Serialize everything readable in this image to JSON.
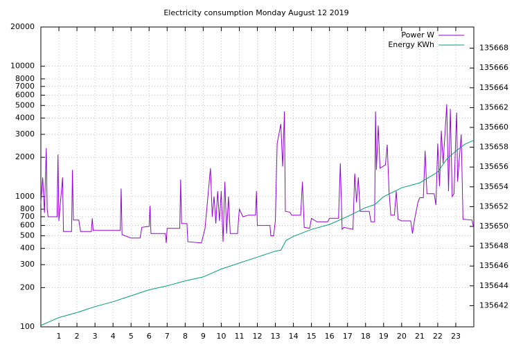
{
  "chart_data": {
    "type": "line",
    "title": "Electricity consumption Monday August 12 2019",
    "xlim": [
      0,
      24
    ],
    "xticks": [
      1,
      2,
      3,
      4,
      5,
      6,
      7,
      8,
      9,
      10,
      11,
      12,
      13,
      14,
      15,
      16,
      17,
      18,
      19,
      20,
      21,
      22,
      23
    ],
    "ylim": [
      100,
      20000
    ],
    "log_y": true,
    "yticks": [
      100,
      200,
      300,
      400,
      500,
      600,
      700,
      800,
      1000,
      2000,
      3000,
      4000,
      5000,
      6000,
      7000,
      8000,
      10000,
      20000
    ],
    "y2lim": [
      135639.86,
      135670.14
    ],
    "y2ticks": [
      135642,
      135644,
      135646,
      135648,
      135650,
      135652,
      135654,
      135656,
      135658,
      135660,
      135662,
      135664,
      135666,
      135668
    ],
    "grid": true,
    "legend": "top-right",
    "series": [
      {
        "name": "Power W",
        "color": "#9400d3",
        "x": [
          0,
          0.1,
          0.2,
          0.3,
          0.35,
          0.4,
          0.9,
          0.95,
          1.0,
          1.2,
          1.25,
          1.7,
          1.75,
          1.8,
          2.1,
          2.2,
          2.8,
          2.85,
          2.9,
          4.4,
          4.45,
          4.5,
          5.0,
          5.5,
          5.6,
          6.0,
          6.05,
          6.1,
          6.9,
          6.95,
          7.0,
          7.7,
          7.75,
          7.8,
          8.1,
          8.15,
          8.9,
          9.1,
          9.4,
          9.5,
          9.6,
          9.7,
          9.8,
          9.9,
          10.0,
          10.1,
          10.2,
          10.3,
          10.4,
          10.5,
          10.9,
          11.0,
          11.2,
          11.5,
          11.9,
          11.95,
          12.0,
          12.7,
          12.75,
          12.9,
          13.0,
          13.1,
          13.3,
          13.4,
          13.5,
          13.55,
          13.8,
          13.9,
          14.4,
          14.5,
          14.6,
          14.9,
          15.0,
          15.3,
          15.9,
          16.0,
          16.5,
          16.6,
          16.7,
          16.8,
          17.3,
          17.4,
          17.5,
          17.6,
          17.7,
          18.2,
          18.3,
          18.5,
          18.55,
          18.6,
          18.7,
          18.8,
          19.1,
          19.2,
          19.3,
          19.4,
          19.6,
          19.7,
          19.8,
          20.0,
          20.5,
          20.6,
          20.7,
          20.9,
          21.0,
          21.2,
          21.3,
          21.4,
          21.8,
          21.9,
          22.0,
          22.1,
          22.2,
          22.3,
          22.4,
          22.5,
          22.6,
          22.7,
          22.8,
          22.9,
          23.0,
          23.05,
          23.1,
          23.3,
          23.4,
          23.9,
          24.0
        ],
        "values": [
          900,
          1400,
          750,
          2350,
          800,
          700,
          700,
          2100,
          650,
          1400,
          540,
          540,
          1600,
          660,
          660,
          540,
          540,
          680,
          550,
          550,
          1150,
          510,
          480,
          480,
          580,
          590,
          850,
          520,
          520,
          440,
          570,
          570,
          1350,
          620,
          620,
          450,
          440,
          570,
          1650,
          700,
          1000,
          620,
          1100,
          650,
          1100,
          450,
          1300,
          520,
          1000,
          520,
          520,
          800,
          700,
          720,
          720,
          1100,
          600,
          600,
          500,
          500,
          650,
          2550,
          3600,
          1700,
          4500,
          770,
          760,
          720,
          720,
          1300,
          580,
          570,
          680,
          640,
          640,
          680,
          680,
          1800,
          560,
          580,
          560,
          1500,
          900,
          1400,
          770,
          770,
          640,
          640,
          4500,
          1600,
          3500,
          1650,
          1750,
          2500,
          1100,
          720,
          720,
          1100,
          670,
          650,
          650,
          520,
          650,
          900,
          980,
          980,
          2250,
          1050,
          1050,
          860,
          2550,
          1200,
          3200,
          1800,
          3000,
          5100,
          1100,
          4700,
          1000,
          1050,
          3000,
          4400,
          1300,
          3000,
          670,
          660,
          570
        ]
      },
      {
        "name": "Energy KWh",
        "color": "#009e73",
        "axis": "y2",
        "x": [
          0,
          1,
          2,
          3,
          4,
          5,
          6,
          7,
          8,
          9,
          10,
          11,
          12,
          13,
          13.3,
          13.6,
          14,
          15,
          16,
          17,
          18,
          18.5,
          19,
          20,
          21,
          22,
          22.5,
          23,
          23.5,
          24
        ],
        "values": [
          135640.0,
          135640.8,
          135641.3,
          135641.9,
          135642.4,
          135643.0,
          135643.6,
          135644.0,
          135644.5,
          135644.9,
          135645.7,
          135646.3,
          135646.9,
          135647.5,
          135647.6,
          135648.6,
          135649.0,
          135649.7,
          135650.2,
          135651.0,
          135651.9,
          135652.2,
          135653.0,
          135653.9,
          135654.4,
          135655.5,
          135656.8,
          135657.6,
          135658.3,
          135658.7
        ]
      }
    ]
  }
}
